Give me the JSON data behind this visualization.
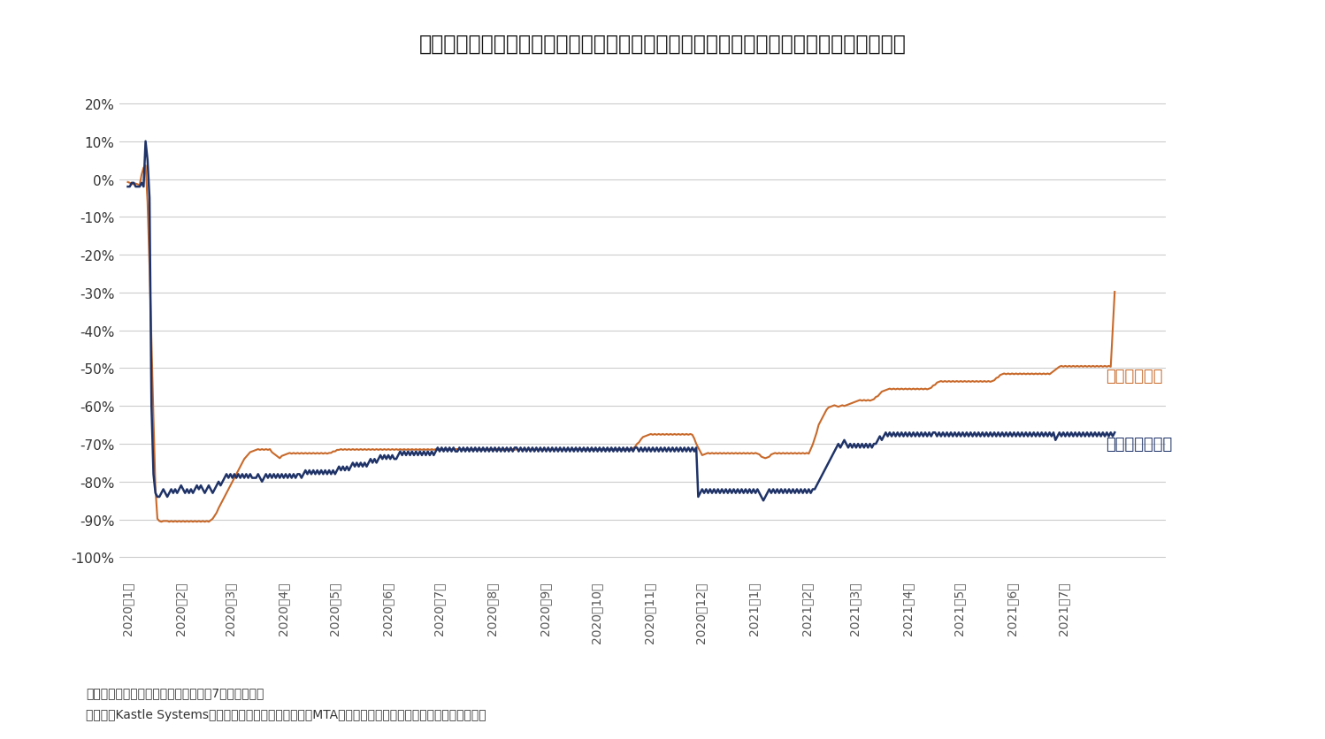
{
  "title": "図表２：全米１０都市オフィス出社率とニューヨーク地下鉄乗客者数（感染拡大前比）",
  "title_fontsize": 17,
  "ylabel_ticks": [
    20,
    10,
    0,
    -10,
    -20,
    -30,
    -40,
    -50,
    -60,
    -70,
    -80,
    -90,
    -100
  ],
  "ylim": [
    -105,
    28
  ],
  "office_color": "#1f3368",
  "subway_color": "#c8692a",
  "office_label": "オフィス出社率",
  "subway_label": "地下鉄乗客数",
  "note1": "（注）ニューヨーク地下鉄乗客者数は7日移動平均。",
  "note2": "（出所）Kastle Systems、ニューヨーク州都市交通局（MTA）のデータをもとにニッセイ基礎研究所作成",
  "grid_color": "#cccccc",
  "background_color": "#ffffff",
  "tick_labels": [
    "2020年1月",
    "2020年2月",
    "2020年3月",
    "2020年4月",
    "2020年5月",
    "2020年6月",
    "2020年7月",
    "2020年8月",
    "2020年9月",
    "2020年10月",
    "2020年11月",
    "2020年12月",
    "2021年1月",
    "2021年2月",
    "2021年3月",
    "2021年4月",
    "2021年5月",
    "2021年6月",
    "2021年7月"
  ],
  "office_data_monthly": [
    [
      -2,
      -2,
      -1,
      -1
    ],
    [
      -2,
      -2,
      -2,
      -1
    ],
    [
      -2,
      10,
      5,
      -5,
      -60,
      -78
    ],
    [
      -83,
      -84,
      -84,
      -83,
      -82,
      -83,
      -84,
      -83,
      -82,
      -83,
      -82,
      -83,
      -82,
      -81,
      -82,
      -83,
      -82,
      -83,
      -82,
      -83,
      -82,
      -81,
      -82,
      -81,
      -82,
      -83,
      -82,
      -81,
      -82,
      -83
    ],
    [
      -82,
      -81,
      -80,
      -81,
      -80,
      -79,
      -78,
      -79,
      -78,
      -79,
      -78,
      -79,
      -78,
      -79,
      -78,
      -79,
      -78,
      -79,
      -78,
      -79,
      -79,
      -79,
      -78,
      -79,
      -80,
      -79,
      -78,
      -79,
      -78,
      -79,
      -78
    ],
    [
      -79,
      -78,
      -79,
      -78,
      -79,
      -78,
      -79,
      -78,
      -79,
      -78,
      -79,
      -78,
      -78,
      -79,
      -78,
      -77,
      -78,
      -77,
      -78,
      -77,
      -78,
      -77,
      -78,
      -77,
      -78,
      -77,
      -78,
      -77,
      -78,
      -77
    ],
    [
      -78,
      -77,
      -76,
      -77,
      -76,
      -77,
      -76,
      -77,
      -76,
      -75,
      -76,
      -75,
      -76,
      -75,
      -76,
      -75,
      -76,
      -75,
      -74,
      -75,
      -74,
      -75,
      -74,
      -73,
      -74,
      -73,
      -74,
      -73,
      -74,
      -73,
      -74
    ],
    [
      -74,
      -73,
      -72,
      -73,
      -72,
      -73,
      -72,
      -73,
      -72,
      -73,
      -72,
      -73,
      -72,
      -73,
      -72,
      -73,
      -72,
      -73,
      -72,
      -73,
      -72,
      -71,
      -72,
      -71,
      -72,
      -71,
      -72,
      -71,
      -72,
      -71,
      -72
    ],
    [
      -72,
      -71,
      -72,
      -71,
      -72,
      -71,
      -72,
      -71,
      -72,
      -71,
      -72,
      -71,
      -72,
      -71,
      -72,
      -71,
      -72,
      -71,
      -72,
      -71,
      -72,
      -71,
      -72,
      -71,
      -72,
      -71,
      -72,
      -71,
      -72,
      -71
    ],
    [
      -71,
      -72,
      -71,
      -72,
      -71,
      -72,
      -71,
      -72,
      -71,
      -72,
      -71,
      -72,
      -71,
      -72,
      -71,
      -72,
      -71,
      -72,
      -71,
      -72,
      -71,
      -72,
      -71,
      -72,
      -71,
      -72,
      -71,
      -72,
      -71,
      -72,
      -71
    ],
    [
      -72,
      -71,
      -72,
      -71,
      -72,
      -71,
      -72,
      -71,
      -72,
      -71,
      -72,
      -71,
      -72,
      -71,
      -72,
      -71,
      -72,
      -71,
      -72,
      -71,
      -72,
      -71,
      -72,
      -71,
      -72,
      -71,
      -72,
      -71,
      -72,
      -71
    ],
    [
      -71,
      -72,
      -71,
      -72,
      -71,
      -72,
      -71,
      -72,
      -71,
      -72,
      -71,
      -72,
      -71,
      -72,
      -71,
      -72,
      -71,
      -72,
      -71,
      -72,
      -71,
      -72,
      -71,
      -72,
      -71,
      -72,
      -71,
      -72,
      -71,
      -72,
      -71
    ],
    [
      -84,
      -83,
      -82,
      -83,
      -82,
      -83,
      -82,
      -83,
      -82,
      -83,
      -82,
      -83,
      -82,
      -83,
      -82,
      -83,
      -82,
      -83,
      -82,
      -83,
      -82,
      -83,
      -82,
      -83,
      -82,
      -83,
      -82,
      -83,
      -82,
      -83,
      -82
    ],
    [
      -83,
      -84,
      -85,
      -84,
      -83,
      -82,
      -83,
      -82,
      -83,
      -82,
      -83,
      -82,
      -83,
      -82,
      -83,
      -82,
      -83,
      -82,
      -83,
      -82,
      -83,
      -82,
      -83,
      -82,
      -83,
      -82,
      -83,
      -82
    ],
    [
      -82,
      -81,
      -80,
      -79,
      -78,
      -77,
      -76,
      -75,
      -74,
      -73,
      -72,
      -71,
      -70,
      -71,
      -70,
      -69,
      -70,
      -71,
      -70,
      -71,
      -70,
      -71,
      -70,
      -71,
      -70,
      -71,
      -70,
      -71,
      -70,
      -71,
      -70
    ],
    [
      -70,
      -69,
      -68,
      -69,
      -68,
      -67,
      -68,
      -67,
      -68,
      -67,
      -68,
      -67,
      -68,
      -67,
      -68,
      -67,
      -68,
      -67,
      -68,
      -67,
      -68,
      -67,
      -68,
      -67,
      -68,
      -67,
      -68,
      -67,
      -68,
      -67
    ],
    [
      -67,
      -68,
      -67,
      -68,
      -67,
      -68,
      -67,
      -68,
      -67,
      -68,
      -67,
      -68,
      -67,
      -68,
      -67,
      -68,
      -67,
      -68,
      -67,
      -68,
      -67,
      -68,
      -67,
      -68,
      -67,
      -68,
      -67,
      -68,
      -67,
      -68,
      -67
    ],
    [
      -68,
      -67,
      -68,
      -67,
      -68,
      -67,
      -68,
      -67,
      -68,
      -67,
      -68,
      -67,
      -68,
      -67,
      -68,
      -67,
      -68,
      -67,
      -68,
      -67,
      -68,
      -67,
      -68,
      -67,
      -68,
      -67,
      -68,
      -67,
      -68,
      -67
    ],
    [
      -69,
      -68,
      -67,
      -68,
      -67,
      -68,
      -67,
      -68,
      -67,
      -68,
      -67,
      -68,
      -67,
      -68,
      -67,
      -68,
      -67,
      -68,
      -67,
      -68,
      -67,
      -68,
      -67,
      -68,
      -67,
      -68,
      -67,
      -68,
      -67,
      -68,
      -67
    ]
  ],
  "subway_data_monthly": [
    [
      -2,
      -1,
      -1,
      -1
    ],
    [
      -2,
      -1,
      -1,
      -2
    ],
    [
      -2,
      12,
      8,
      2,
      -50,
      -87
    ],
    [
      -90,
      -91,
      -91,
      -90,
      -90,
      -91,
      -90,
      -91,
      -90,
      -91,
      -90,
      -91,
      -90,
      -91,
      -90,
      -91,
      -90,
      -91,
      -90,
      -91,
      -90,
      -91,
      -90,
      -91,
      -90,
      -91,
      -90,
      -91,
      -90,
      -91
    ],
    [
      -89,
      -88,
      -87,
      -86,
      -85,
      -84,
      -83,
      -82,
      -81,
      -80,
      -79,
      -78,
      -77,
      -76,
      -75,
      -74,
      -73,
      -72,
      -73,
      -72,
      -71,
      -72,
      -71,
      -72,
      -71,
      -72,
      -71,
      -72,
      -71,
      -72,
      -71
    ],
    [
      -75,
      -74,
      -73,
      -74,
      -73,
      -72,
      -73,
      -72,
      -73,
      -72,
      -73,
      -72,
      -73,
      -72,
      -73,
      -72,
      -73,
      -72,
      -73,
      -72,
      -73,
      -72,
      -73,
      -72,
      -73,
      -72,
      -73,
      -72,
      -73,
      -72
    ],
    [
      -72,
      -71,
      -72,
      -71,
      -72,
      -71,
      -72,
      -71,
      -72,
      -71,
      -72,
      -71,
      -72,
      -71,
      -72,
      -71,
      -72,
      -71,
      -72,
      -71,
      -72,
      -71,
      -72,
      -71,
      -72,
      -71,
      -72,
      -71,
      -72,
      -71,
      -72
    ],
    [
      -71,
      -72,
      -71,
      -72,
      -71,
      -72,
      -71,
      -72,
      -71,
      -72,
      -71,
      -72,
      -71,
      -72,
      -71,
      -72,
      -71,
      -72,
      -71,
      -72,
      -71,
      -72,
      -71,
      -72,
      -71,
      -72,
      -71,
      -72,
      -71,
      -72,
      -71
    ],
    [
      -71,
      -72,
      -71,
      -72,
      -71,
      -72,
      -71,
      -72,
      -71,
      -72,
      -71,
      -72,
      -71,
      -72,
      -71,
      -72,
      -71,
      -72,
      -71,
      -72,
      -71,
      -72,
      -71,
      -72,
      -71,
      -72,
      -71,
      -72,
      -71,
      -72
    ],
    [
      -71,
      -72,
      -71,
      -72,
      -71,
      -72,
      -71,
      -72,
      -71,
      -72,
      -71,
      -72,
      -71,
      -72,
      -71,
      -72,
      -71,
      -72,
      -71,
      -72,
      -71,
      -72,
      -71,
      -72,
      -71,
      -72,
      -71,
      -72,
      -71,
      -72,
      -71
    ],
    [
      -71,
      -72,
      -71,
      -72,
      -71,
      -72,
      -71,
      -72,
      -71,
      -72,
      -71,
      -72,
      -71,
      -72,
      -71,
      -72,
      -71,
      -72,
      -71,
      -72,
      -71,
      -72,
      -71,
      -72,
      -71,
      -72,
      -71,
      -72,
      -71,
      -72
    ],
    [
      -70,
      -69,
      -68,
      -69,
      -68,
      -67,
      -68,
      -67,
      -68,
      -67,
      -68,
      -67,
      -68,
      -67,
      -68,
      -67,
      -68,
      -67,
      -68,
      -67,
      -68,
      -67,
      -68,
      -67,
      -68,
      -67,
      -68,
      -67,
      -68,
      -67,
      -68
    ],
    [
      -73,
      -74,
      -73,
      -72,
      -73,
      -72,
      -73,
      -72,
      -73,
      -72,
      -73,
      -72,
      -73,
      -72,
      -73,
      -72,
      -73,
      -72,
      -73,
      -72,
      -73,
      -72,
      -73,
      -72,
      -73,
      -72,
      -73,
      -72,
      -73,
      -72,
      -73
    ],
    [
      -72,
      -73,
      -74,
      -75,
      -74,
      -73,
      -72,
      -73,
      -72,
      -73,
      -72,
      -73,
      -72,
      -73,
      -72,
      -73,
      -72,
      -73,
      -72,
      -73,
      -72,
      -73,
      -72,
      -73,
      -72,
      -73,
      -72,
      -73
    ],
    [
      -67,
      -66,
      -65,
      -64,
      -63,
      -62,
      -61,
      -60,
      -59,
      -60,
      -61,
      -60,
      -59,
      -60,
      -61,
      -60,
      -59,
      -60,
      -59,
      -60,
      -59,
      -58,
      -59,
      -58,
      -59,
      -58,
      -59,
      -58,
      -59,
      -58,
      -59
    ],
    [
      -58,
      -57,
      -56,
      -57,
      -56,
      -55,
      -56,
      -55,
      -56,
      -55,
      -56,
      -55,
      -56,
      -55,
      -56,
      -55,
      -56,
      -55,
      -56,
      -55,
      -56,
      -55,
      -56,
      -55,
      -56,
      -55,
      -56,
      -55,
      -56,
      -55
    ],
    [
      -54,
      -53,
      -54,
      -53,
      -54,
      -53,
      -54,
      -53,
      -54,
      -53,
      -54,
      -53,
      -54,
      -53,
      -54,
      -53,
      -54,
      -53,
      -54,
      -53,
      -54,
      -53,
      -54,
      -53,
      -54,
      -53,
      -54,
      -53,
      -54,
      -53,
      -54
    ],
    [
      -53,
      -52,
      -51,
      -52,
      -51,
      -52,
      -51,
      -52,
      -51,
      -52,
      -51,
      -52,
      -51,
      -52,
      -51,
      -52,
      -51,
      -52,
      -51,
      -52,
      -51,
      -52,
      -51,
      -52,
      -51,
      -52,
      -51,
      -52,
      -51,
      -52
    ],
    [
      -50,
      -49,
      -50,
      -49,
      -50,
      -49,
      -50,
      -49,
      -50,
      -49,
      -50,
      -49,
      -50,
      -49,
      -50,
      -49,
      -50,
      -49,
      -50,
      -49,
      -50,
      -49,
      -50,
      -49,
      -50,
      -49,
      -50,
      -49,
      -50,
      -49,
      -50
    ]
  ]
}
